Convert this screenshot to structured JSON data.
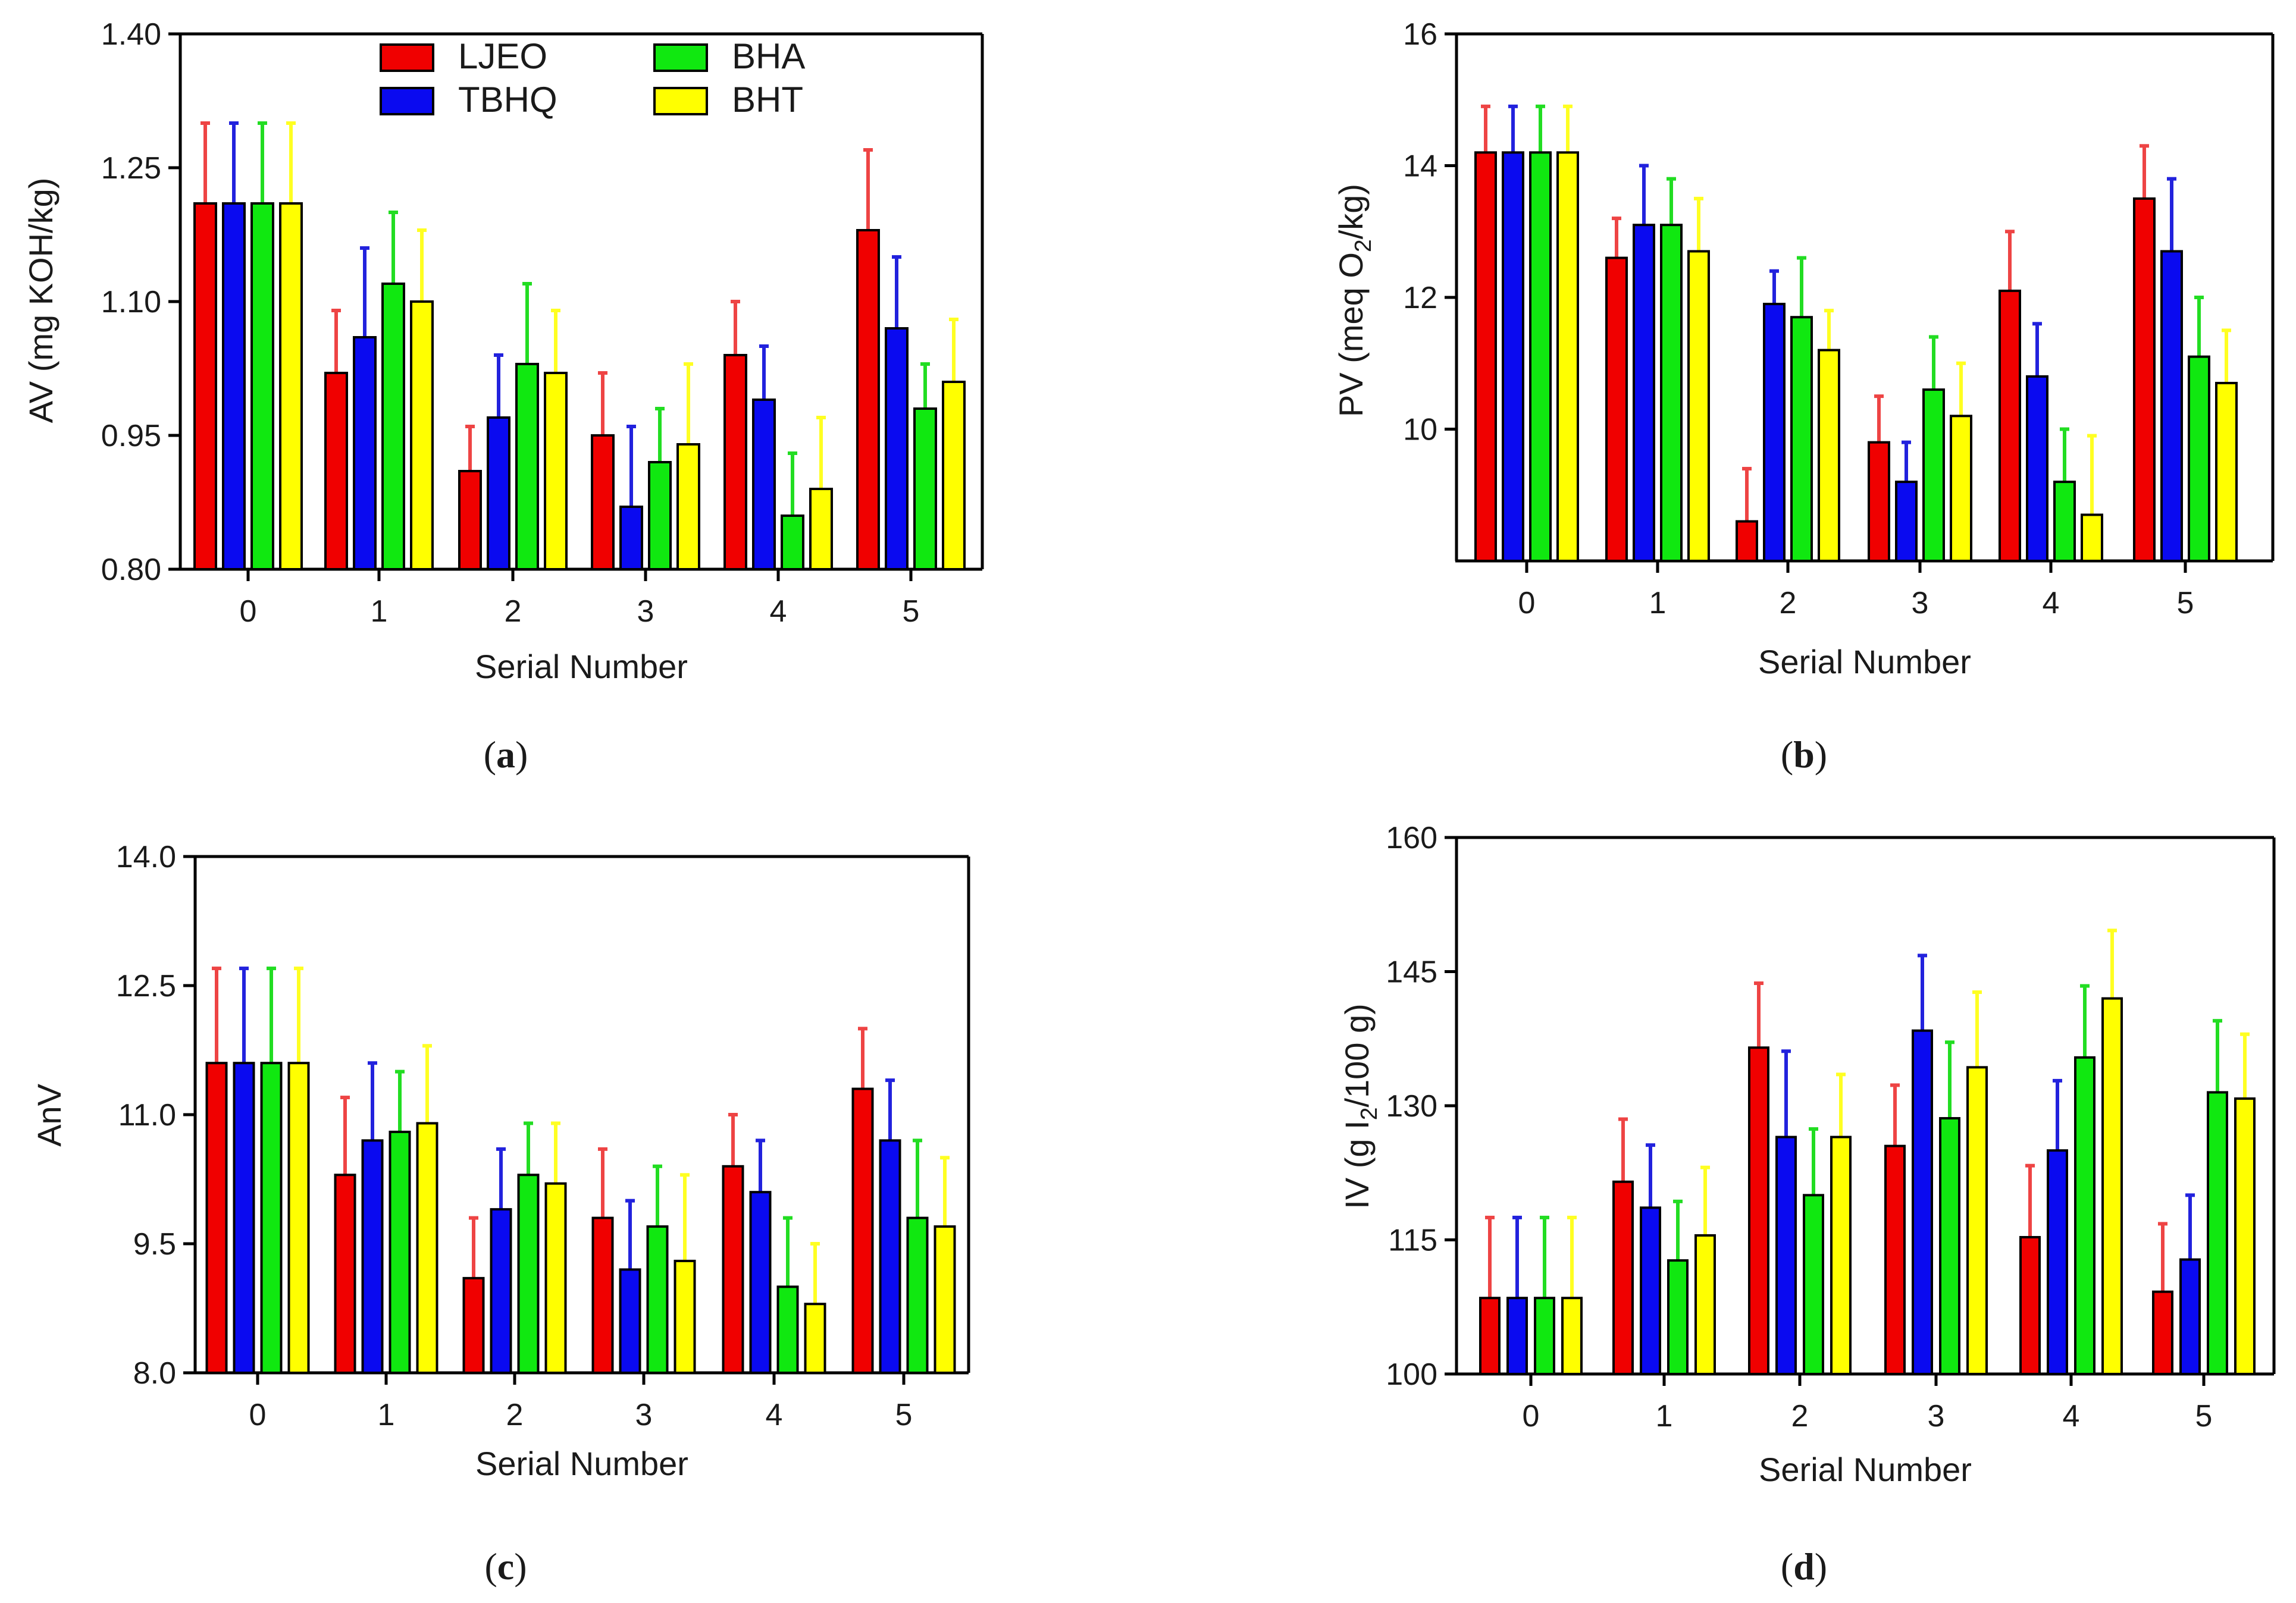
{
  "figure": {
    "series_colors": {
      "LJEO": "#f00000",
      "TBHQ": "#0a0af0",
      "BHA": "#10e810",
      "BHT": "#ffff00"
    },
    "error_bar_colors": {
      "LJEO": "#ee4444",
      "TBHQ": "#2222dd",
      "BHA": "#22dd22",
      "BHT": "#ffff22"
    }
  },
  "chart_data": [
    {
      "panel": "a",
      "type": "bar",
      "ylabel_parts": [
        {
          "t": "AV (mg KOH/kg)",
          "sub": false
        }
      ],
      "xlabel": "Serial Number",
      "categories": [
        "0",
        "1",
        "2",
        "3",
        "4",
        "5"
      ],
      "ylim": [
        0.8,
        1.4
      ],
      "yticks": [
        "0.80",
        "0.95",
        "1.10",
        "1.25",
        "1.40"
      ],
      "legend": {
        "placement": "top-left",
        "labels": [
          "LJEO",
          "TBHQ",
          "BHA",
          "BHT"
        ]
      },
      "series": [
        {
          "name": "LJEO",
          "values": [
            1.21,
            1.02,
            0.91,
            0.95,
            1.04,
            1.18
          ],
          "errors": [
            0.09,
            0.07,
            0.05,
            0.07,
            0.06,
            0.09
          ]
        },
        {
          "name": "TBHQ",
          "values": [
            1.21,
            1.06,
            0.97,
            0.87,
            0.99,
            1.07
          ],
          "errors": [
            0.09,
            0.1,
            0.07,
            0.09,
            0.06,
            0.08
          ]
        },
        {
          "name": "BHA",
          "values": [
            1.21,
            1.12,
            1.03,
            0.92,
            0.86,
            0.98
          ],
          "errors": [
            0.09,
            0.08,
            0.09,
            0.06,
            0.07,
            0.05
          ]
        },
        {
          "name": "BHT",
          "values": [
            1.21,
            1.1,
            1.02,
            0.94,
            0.89,
            1.01
          ],
          "errors": [
            0.09,
            0.08,
            0.07,
            0.09,
            0.08,
            0.07
          ]
        }
      ],
      "panel_label": "a"
    },
    {
      "panel": "b",
      "type": "bar",
      "ylabel_parts": [
        {
          "t": "PV (meq O",
          "sub": false
        },
        {
          "t": "2",
          "sub": true
        },
        {
          "t": "/kg)",
          "sub": false
        }
      ],
      "xlabel": "Serial Number",
      "categories": [
        "0",
        "1",
        "2",
        "3",
        "4",
        "5"
      ],
      "ylim": [
        8,
        16
      ],
      "yticks": [
        "10",
        "12",
        "14",
        "16"
      ],
      "ytick_values": [
        10,
        12,
        14,
        16
      ],
      "series": [
        {
          "name": "LJEO",
          "values": [
            14.2,
            12.6,
            8.6,
            9.8,
            12.1,
            13.5
          ],
          "errors": [
            0.7,
            0.6,
            0.8,
            0.7,
            0.9,
            0.8
          ]
        },
        {
          "name": "TBHQ",
          "values": [
            14.2,
            13.1,
            11.9,
            9.2,
            10.8,
            12.7
          ],
          "errors": [
            0.7,
            0.9,
            0.5,
            0.6,
            0.8,
            1.1
          ]
        },
        {
          "name": "BHA",
          "values": [
            14.2,
            13.1,
            11.7,
            10.6,
            9.2,
            11.1
          ],
          "errors": [
            0.7,
            0.7,
            0.9,
            0.8,
            0.8,
            0.9
          ]
        },
        {
          "name": "BHT",
          "values": [
            14.2,
            12.7,
            11.2,
            10.2,
            8.7,
            10.7
          ],
          "errors": [
            0.7,
            0.8,
            0.6,
            0.8,
            1.2,
            0.8
          ]
        }
      ],
      "panel_label": "b"
    },
    {
      "panel": "c",
      "type": "bar",
      "ylabel_parts": [
        {
          "t": "AnV",
          "sub": false
        }
      ],
      "xlabel": "Serial Number",
      "categories": [
        "0",
        "1",
        "2",
        "3",
        "4",
        "5"
      ],
      "ylim": [
        8,
        14
      ],
      "yticks": [
        "8.0",
        "9.5",
        "11.0",
        "12.5",
        "14.0"
      ],
      "series": [
        {
          "name": "LJEO",
          "values": [
            11.6,
            10.3,
            9.1,
            9.8,
            10.4,
            11.3
          ],
          "errors": [
            1.1,
            0.9,
            0.7,
            0.8,
            0.6,
            0.7
          ]
        },
        {
          "name": "TBHQ",
          "values": [
            11.6,
            10.7,
            9.9,
            9.2,
            10.1,
            10.7
          ],
          "errors": [
            1.1,
            0.9,
            0.7,
            0.8,
            0.6,
            0.7
          ]
        },
        {
          "name": "BHA",
          "values": [
            11.6,
            10.8,
            10.3,
            9.7,
            9.0,
            9.8
          ],
          "errors": [
            1.1,
            0.7,
            0.6,
            0.7,
            0.8,
            0.9
          ]
        },
        {
          "name": "BHT",
          "values": [
            11.6,
            10.9,
            10.2,
            9.3,
            8.8,
            9.7
          ],
          "errors": [
            1.1,
            0.9,
            0.7,
            1.0,
            0.7,
            0.8
          ]
        }
      ],
      "panel_label": "c"
    },
    {
      "panel": "d",
      "type": "bar",
      "ylabel_parts": [
        {
          "t": "IV (g I",
          "sub": false
        },
        {
          "t": "2",
          "sub": true
        },
        {
          "t": "/100 g)",
          "sub": false
        }
      ],
      "xlabel": "Serial Number",
      "categories": [
        "0",
        "1",
        "2",
        "3",
        "4",
        "5"
      ],
      "ylim": [
        100,
        160
      ],
      "yticks": [
        "100",
        "115",
        "130",
        "145",
        "160"
      ],
      "series": [
        {
          "name": "LJEO",
          "values": [
            108.5,
            121.5,
            136.5,
            125.5,
            115.3,
            109.2
          ],
          "errors": [
            9.0,
            7.0,
            7.2,
            6.8,
            8.0,
            7.6
          ]
        },
        {
          "name": "TBHQ",
          "values": [
            108.5,
            118.6,
            126.5,
            138.4,
            125.0,
            112.8
          ],
          "errors": [
            9.0,
            7.0,
            9.6,
            8.4,
            7.8,
            7.2
          ]
        },
        {
          "name": "BHA",
          "values": [
            108.5,
            112.7,
            120.0,
            128.6,
            135.4,
            131.5
          ],
          "errors": [
            9.0,
            6.6,
            7.4,
            8.5,
            8.0,
            8.0
          ]
        },
        {
          "name": "BHT",
          "values": [
            108.5,
            115.5,
            126.5,
            134.3,
            142.0,
            130.8
          ],
          "errors": [
            9.0,
            7.6,
            7.0,
            8.4,
            7.6,
            7.2
          ]
        }
      ],
      "panel_label": "d"
    }
  ]
}
